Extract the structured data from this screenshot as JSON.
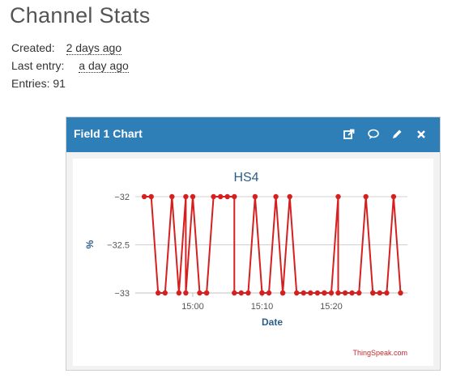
{
  "page": {
    "title": "Channel Stats"
  },
  "stats": {
    "created_label": "Created:",
    "created_value": "2 days ago",
    "last_entry_label": "Last entry:",
    "last_entry_value": "a day ago",
    "entries_label": "Entries:",
    "entries_value": "91"
  },
  "panel": {
    "title": "Field 1 Chart",
    "header_color": "#2e7fb8",
    "icons": [
      "external-link-icon",
      "comment-icon",
      "pencil-icon",
      "close-icon"
    ]
  },
  "chart_data": {
    "type": "line",
    "title": "HS4",
    "xlabel": "Date",
    "ylabel": "%",
    "ylim": [
      -33,
      -32
    ],
    "yticks": [
      "-32",
      "-32.5",
      "-33"
    ],
    "xticks": [
      "15:00",
      "15:10",
      "15:20"
    ],
    "grid": true,
    "line_color": "#d62020",
    "credit": "ThingSpeak.com",
    "x": [
      "14:53",
      "14:54",
      "14:55",
      "14:56",
      "14:57",
      "14:58",
      "14:59",
      "14:59",
      "15:00",
      "15:01",
      "15:02",
      "15:02",
      "15:03",
      "15:04",
      "15:05",
      "15:06",
      "15:06",
      "15:07",
      "15:08",
      "15:09",
      "15:10",
      "15:10",
      "15:11",
      "15:12",
      "15:13",
      "15:13",
      "15:14",
      "15:15",
      "15:16",
      "15:17",
      "15:18",
      "15:19",
      "15:19",
      "15:20",
      "15:21",
      "15:21",
      "15:22",
      "15:23",
      "15:24",
      "15:25",
      "15:26",
      "15:26",
      "15:27",
      "15:28",
      "15:29",
      "15:30"
    ],
    "values": [
      -32,
      -32,
      -33,
      -33,
      -32,
      -33,
      -32,
      -33,
      -32,
      -33,
      -33,
      -33,
      -32,
      -32,
      -32,
      -32,
      -33,
      -33,
      -33,
      -32,
      -33,
      -33,
      -33,
      -32,
      -33,
      -33,
      -32,
      -33,
      -33,
      -33,
      -33,
      -33,
      -33,
      -33,
      -32,
      -33,
      -33,
      -33,
      -33,
      -32,
      -33,
      -33,
      -33,
      -33,
      -32,
      -33
    ]
  }
}
